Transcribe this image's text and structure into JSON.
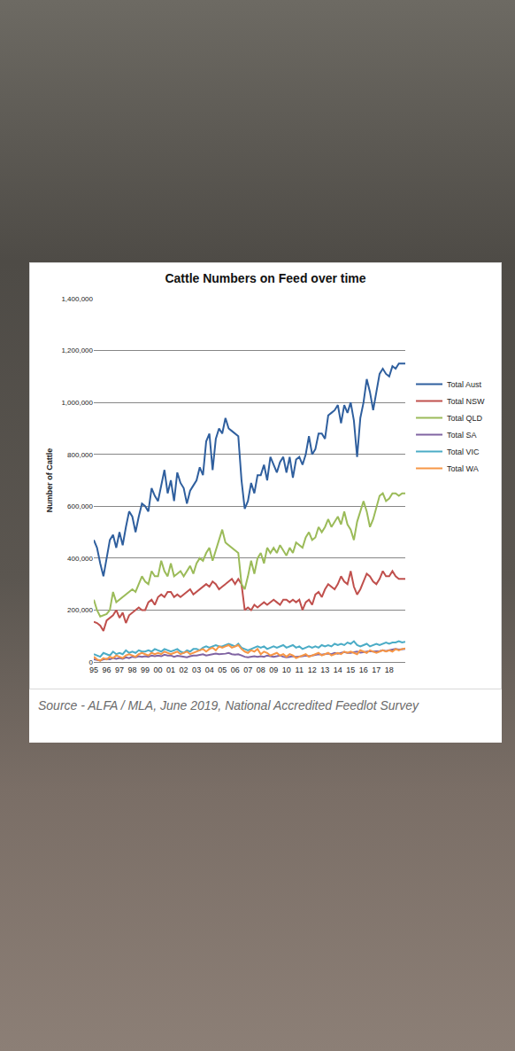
{
  "chart_data": {
    "type": "line",
    "title": "Cattle Numbers on Feed over time",
    "y_label": "Number of Cattle",
    "categories": [
      "95",
      null,
      null,
      null,
      "96",
      null,
      null,
      null,
      "97",
      null,
      null,
      null,
      "98",
      null,
      null,
      null,
      "99",
      null,
      null,
      null,
      "00",
      null,
      null,
      null,
      "01",
      null,
      null,
      null,
      "02",
      null,
      null,
      null,
      "03",
      null,
      null,
      null,
      "04",
      null,
      null,
      null,
      "05",
      null,
      null,
      null,
      "06",
      null,
      null,
      null,
      "07",
      null,
      null,
      null,
      "08",
      null,
      null,
      null,
      "09",
      null,
      null,
      null,
      "10",
      null,
      null,
      null,
      "11",
      null,
      null,
      null,
      "12",
      null,
      null,
      null,
      "13",
      null,
      null,
      null,
      "14",
      null,
      null,
      null,
      "15",
      null,
      null,
      null,
      "16",
      null,
      null,
      null,
      "17",
      null,
      null,
      null,
      "18",
      null,
      null,
      null,
      null,
      null
    ],
    "ylim": [
      0,
      1400000
    ],
    "yticks": [
      0,
      {
        "value": 200000,
        "label": "200,000"
      },
      {
        "value": 400000,
        "label": "400,000"
      },
      {
        "value": 600000,
        "label": "600,000"
      },
      {
        "value": 800000,
        "label": "800,000"
      },
      {
        "value": 1000000,
        "label": "1,000,000"
      },
      {
        "value": 1200000,
        "label": "1,200,000"
      },
      {
        "value": 1400000,
        "label": "1,400,000"
      }
    ],
    "grid": true,
    "legend": "right",
    "series": [
      {
        "name": "Total Aust",
        "color": "#2f5f9e",
        "values": [
          470000,
          440000,
          380000,
          330000,
          400000,
          470000,
          490000,
          440000,
          500000,
          450000,
          520000,
          580000,
          560000,
          500000,
          560000,
          610000,
          600000,
          580000,
          670000,
          640000,
          620000,
          680000,
          740000,
          650000,
          700000,
          620000,
          730000,
          690000,
          670000,
          610000,
          660000,
          680000,
          700000,
          750000,
          720000,
          850000,
          880000,
          740000,
          860000,
          900000,
          880000,
          940000,
          900000,
          890000,
          880000,
          870000,
          700000,
          590000,
          620000,
          690000,
          650000,
          720000,
          720000,
          760000,
          700000,
          790000,
          760000,
          730000,
          770000,
          790000,
          730000,
          790000,
          710000,
          780000,
          790000,
          760000,
          800000,
          870000,
          800000,
          820000,
          880000,
          880000,
          860000,
          950000,
          960000,
          970000,
          990000,
          920000,
          990000,
          960000,
          1000000,
          930000,
          790000,
          940000,
          1000000,
          1090000,
          1040000,
          970000,
          1040000,
          1110000,
          1130000,
          1110000,
          1100000,
          1140000,
          1130000,
          1150000,
          1150000,
          1150000
        ]
      },
      {
        "name": "Total NSW",
        "color": "#c0504d",
        "values": [
          155000,
          150000,
          140000,
          120000,
          160000,
          170000,
          180000,
          200000,
          170000,
          190000,
          150000,
          180000,
          190000,
          200000,
          210000,
          200000,
          200000,
          230000,
          240000,
          220000,
          250000,
          260000,
          250000,
          270000,
          270000,
          250000,
          260000,
          250000,
          260000,
          270000,
          280000,
          260000,
          270000,
          280000,
          290000,
          300000,
          290000,
          310000,
          300000,
          280000,
          290000,
          300000,
          310000,
          320000,
          300000,
          320000,
          300000,
          200000,
          210000,
          200000,
          220000,
          210000,
          220000,
          230000,
          220000,
          230000,
          240000,
          230000,
          220000,
          240000,
          240000,
          230000,
          240000,
          230000,
          240000,
          200000,
          230000,
          240000,
          220000,
          260000,
          270000,
          250000,
          280000,
          300000,
          290000,
          280000,
          300000,
          330000,
          310000,
          300000,
          350000,
          290000,
          260000,
          280000,
          310000,
          340000,
          330000,
          310000,
          300000,
          320000,
          350000,
          330000,
          330000,
          350000,
          330000,
          320000,
          320000,
          320000
        ]
      },
      {
        "name": "Total QLD",
        "color": "#9bbb59",
        "values": [
          240000,
          200000,
          175000,
          180000,
          185000,
          200000,
          270000,
          230000,
          240000,
          250000,
          260000,
          270000,
          280000,
          270000,
          300000,
          330000,
          310000,
          300000,
          350000,
          330000,
          330000,
          390000,
          350000,
          330000,
          380000,
          330000,
          340000,
          350000,
          330000,
          350000,
          370000,
          340000,
          380000,
          400000,
          390000,
          420000,
          440000,
          390000,
          430000,
          470000,
          510000,
          460000,
          450000,
          440000,
          430000,
          420000,
          300000,
          280000,
          330000,
          390000,
          340000,
          400000,
          420000,
          380000,
          440000,
          420000,
          440000,
          420000,
          450000,
          430000,
          410000,
          440000,
          420000,
          460000,
          450000,
          440000,
          480000,
          500000,
          470000,
          480000,
          520000,
          500000,
          520000,
          550000,
          520000,
          540000,
          560000,
          530000,
          580000,
          530000,
          510000,
          470000,
          540000,
          580000,
          620000,
          580000,
          520000,
          550000,
          600000,
          640000,
          650000,
          620000,
          630000,
          650000,
          650000,
          640000,
          650000,
          650000
        ]
      },
      {
        "name": "Total SA",
        "color": "#8064a2",
        "values": [
          10000,
          8000,
          5000,
          10000,
          12000,
          10000,
          15000,
          12000,
          15000,
          12000,
          18000,
          15000,
          20000,
          18000,
          22000,
          20000,
          22000,
          20000,
          25000,
          22000,
          25000,
          22000,
          28000,
          25000,
          25000,
          20000,
          24000,
          22000,
          20000,
          18000,
          22000,
          25000,
          25000,
          28000,
          30000,
          25000,
          28000,
          30000,
          32000,
          30000,
          30000,
          32000,
          35000,
          30000,
          28000,
          30000,
          25000,
          20000,
          18000,
          20000,
          22000,
          20000,
          22000,
          20000,
          25000,
          22000,
          20000,
          22000,
          25000,
          20000,
          18000,
          20000,
          22000,
          20000,
          20000,
          22000,
          25000,
          22000,
          25000,
          28000,
          30000,
          28000,
          30000,
          32000,
          30000,
          35000,
          32000,
          35000,
          38000,
          35000,
          35000,
          38000,
          40000,
          36000,
          38000,
          40000,
          42000,
          40000,
          40000,
          42000,
          45000,
          42000,
          45000,
          48000,
          50000,
          48000,
          50000,
          50000
        ]
      },
      {
        "name": "Total VIC",
        "color": "#4bacc6",
        "values": [
          30000,
          25000,
          20000,
          35000,
          30000,
          25000,
          40000,
          30000,
          35000,
          30000,
          45000,
          35000,
          40000,
          35000,
          45000,
          40000,
          40000,
          45000,
          40000,
          50000,
          45000,
          40000,
          50000,
          45000,
          40000,
          45000,
          50000,
          40000,
          35000,
          45000,
          40000,
          50000,
          50000,
          45000,
          55000,
          60000,
          55000,
          60000,
          65000,
          60000,
          60000,
          65000,
          70000,
          65000,
          60000,
          70000,
          55000,
          50000,
          45000,
          50000,
          55000,
          60000,
          55000,
          60000,
          50000,
          55000,
          60000,
          55000,
          60000,
          65000,
          55000,
          60000,
          65000,
          55000,
          60000,
          50000,
          55000,
          60000,
          55000,
          60000,
          55000,
          65000,
          60000,
          65000,
          60000,
          70000,
          65000,
          70000,
          65000,
          75000,
          70000,
          80000,
          65000,
          60000,
          65000,
          70000,
          60000,
          65000,
          70000,
          65000,
          70000,
          75000,
          70000,
          75000,
          75000,
          80000,
          75000,
          78000
        ]
      },
      {
        "name": "Total WA",
        "color": "#f79646",
        "values": [
          20000,
          10000,
          5000,
          15000,
          10000,
          20000,
          15000,
          25000,
          20000,
          15000,
          25000,
          30000,
          25000,
          20000,
          30000,
          35000,
          30000,
          25000,
          35000,
          30000,
          35000,
          30000,
          40000,
          35000,
          30000,
          35000,
          40000,
          30000,
          35000,
          40000,
          30000,
          35000,
          40000,
          45000,
          50000,
          40000,
          50000,
          55000,
          45000,
          60000,
          55000,
          60000,
          65000,
          55000,
          60000,
          65000,
          50000,
          40000,
          35000,
          45000,
          40000,
          50000,
          30000,
          40000,
          35000,
          25000,
          30000,
          35000,
          25000,
          30000,
          20000,
          30000,
          25000,
          15000,
          20000,
          25000,
          30000,
          20000,
          25000,
          30000,
          35000,
          25000,
          30000,
          35000,
          25000,
          30000,
          35000,
          30000,
          40000,
          35000,
          40000,
          35000,
          30000,
          45000,
          40000,
          35000,
          45000,
          40000,
          35000,
          40000,
          45000,
          40000,
          45000,
          40000,
          50000,
          45000,
          50000,
          52000
        ]
      }
    ]
  },
  "source": "Source - ALFA / MLA, June 2019, National Accredited Feedlot Survey"
}
